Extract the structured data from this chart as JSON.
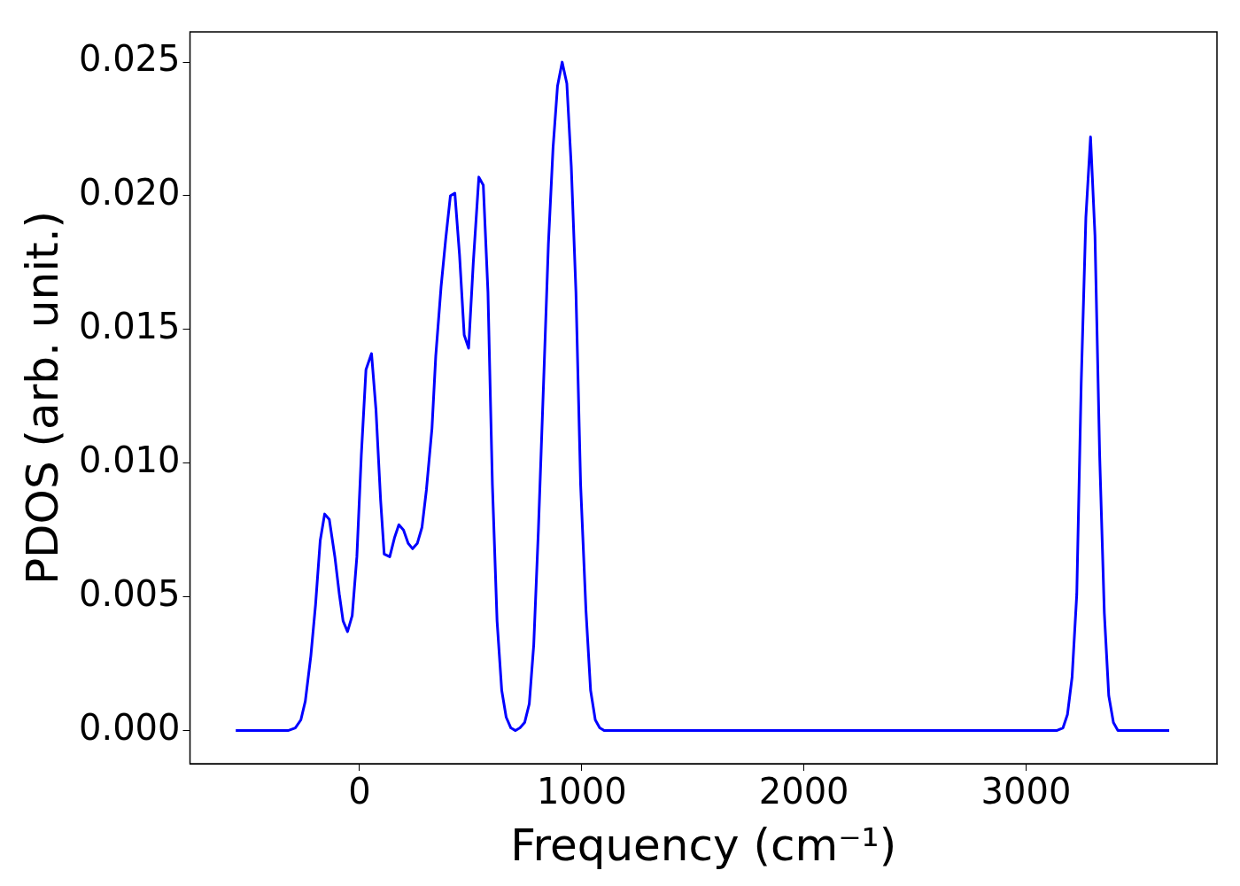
{
  "chart_data": {
    "type": "line",
    "xlabel": "Frequency (cm⁻¹)",
    "ylabel": "PDOS (arb. unit.)",
    "x": [
      -557,
      -322,
      -289,
      -264,
      -244,
      -219,
      -198,
      -177,
      -157,
      -136,
      -111,
      -91,
      -74,
      -54,
      -33,
      -12,
      8,
      29,
      54,
      74,
      95,
      111,
      136,
      157,
      177,
      198,
      219,
      239,
      260,
      281,
      301,
      326,
      343,
      367,
      388,
      409,
      429,
      450,
      471,
      491,
      512,
      537,
      557,
      578,
      598,
      619,
      640,
      660,
      681,
      702,
      722,
      743,
      764,
      784,
      805,
      830,
      850,
      871,
      891,
      912,
      933,
      953,
      974,
      995,
      1019,
      1040,
      1061,
      1081,
      1102,
      3137,
      3166,
      3186,
      3207,
      3228,
      3248,
      3269,
      3290,
      3310,
      3331,
      3352,
      3372,
      3393,
      3413,
      3644
    ],
    "series": [
      {
        "color": "#0000ff",
        "values": [
          0,
          0,
          0.0001,
          0.0004,
          0.0011,
          0.0028,
          0.0047,
          0.0071,
          0.0081,
          0.0079,
          0.0065,
          0.0051,
          0.0041,
          0.0037,
          0.0043,
          0.0065,
          0.0103,
          0.0135,
          0.0141,
          0.012,
          0.0086,
          0.0066,
          0.0065,
          0.0072,
          0.0077,
          0.0075,
          0.007,
          0.0068,
          0.007,
          0.0076,
          0.009,
          0.0113,
          0.014,
          0.0166,
          0.0184,
          0.02,
          0.0201,
          0.0178,
          0.0148,
          0.0143,
          0.0175,
          0.0207,
          0.0204,
          0.0164,
          0.0092,
          0.0041,
          0.0015,
          0.0005,
          0.0001,
          0,
          0.0001,
          0.0003,
          0.001,
          0.0032,
          0.0075,
          0.0134,
          0.0182,
          0.0218,
          0.0241,
          0.025,
          0.0242,
          0.0211,
          0.0164,
          0.0092,
          0.0045,
          0.0015,
          0.0004,
          0.0001,
          0,
          0,
          0.0001,
          0.0006,
          0.002,
          0.0051,
          0.013,
          0.0192,
          0.0222,
          0.0185,
          0.0103,
          0.0044,
          0.0013,
          0.0003,
          0,
          0
        ]
      }
    ],
    "xlim": [
      -763,
      3859
    ],
    "xticks": [
      0,
      1000,
      2000,
      3000
    ],
    "ylim": [
      -0.00124,
      0.02613
    ],
    "yticks": [
      {
        "value": 0,
        "label": "0.000"
      },
      {
        "value": 0.005,
        "label": "0.005"
      },
      {
        "value": 0.01,
        "label": "0.010"
      },
      {
        "value": 0.015,
        "label": "0.015"
      },
      {
        "value": 0.02,
        "label": "0.020"
      },
      {
        "value": 0.025,
        "label": "0.025"
      }
    ],
    "grid": false,
    "legend": false,
    "marker": "none",
    "line_style": "solid"
  }
}
